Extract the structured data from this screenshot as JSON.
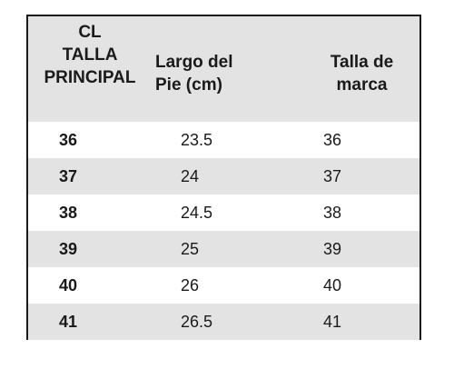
{
  "table": {
    "headers": [
      "CL\nTALLA\nPRINCIPAL",
      "Largo del\nPie (cm)",
      "Talla de\nmarca"
    ],
    "rows": [
      [
        "36",
        "23.5",
        "36"
      ],
      [
        "37",
        "24",
        "37"
      ],
      [
        "38",
        "24.5",
        "38"
      ],
      [
        "39",
        "25",
        "39"
      ],
      [
        "40",
        "26",
        "40"
      ],
      [
        "41",
        "26.5",
        "41"
      ]
    ]
  },
  "colors": {
    "border": "#1a1a1a",
    "band": "#e3e3e3",
    "text": "#1a1a1a"
  }
}
